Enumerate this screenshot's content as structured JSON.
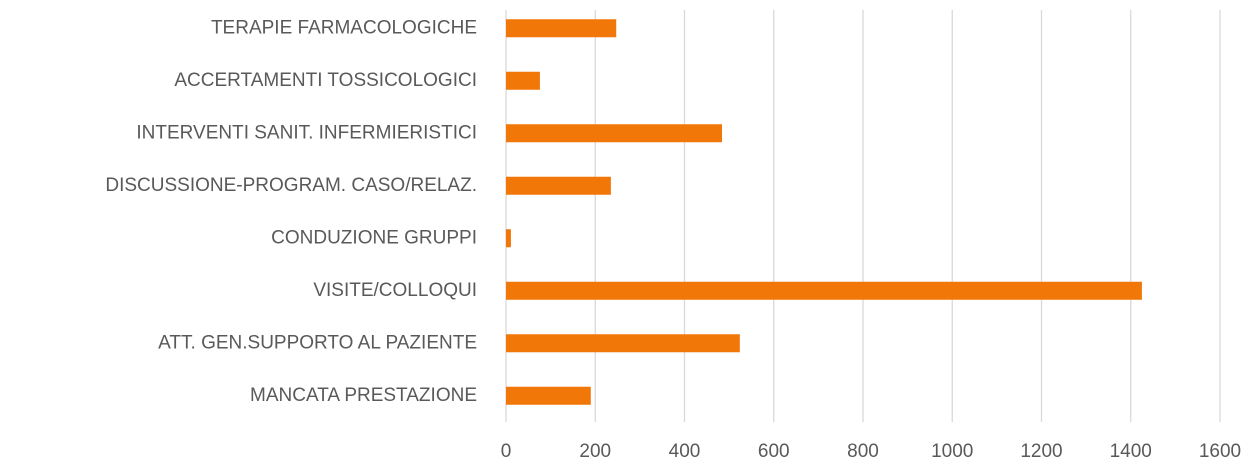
{
  "chart_data": {
    "type": "bar",
    "orientation": "horizontal",
    "categories": [
      "TERAPIE FARMACOLOGICHE",
      "ACCERTAMENTI TOSSICOLOGICI",
      "INTERVENTI SANIT. INFERMIERISTICI",
      "DISCUSSIONE-PROGRAM. CASO/RELAZ.",
      "CONDUZIONE GRUPPI",
      "VISITE/COLLOQUI",
      "ATT. GEN.SUPPORTO AL PAZIENTE",
      "MANCATA PRESTAZIONE"
    ],
    "values": [
      247,
      76,
      484,
      235,
      11,
      1425,
      524,
      190
    ],
    "color": "#f07708",
    "xlim": [
      0,
      1600
    ],
    "xticks": [
      0,
      200,
      400,
      600,
      800,
      1000,
      1200,
      1400,
      1600
    ],
    "grid": true
  }
}
